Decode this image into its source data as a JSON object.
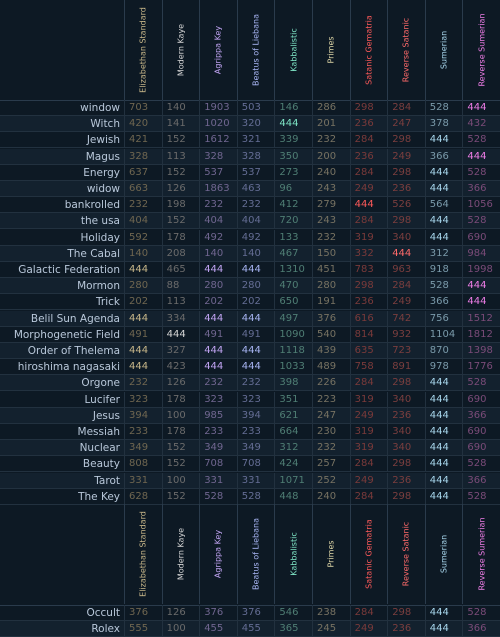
{
  "columns": [
    {
      "name": "Elizabethan Standard",
      "color": "#c9b88a",
      "dim": "#6f6650"
    },
    {
      "name": "Modern Kaye",
      "color": "#d6d6d6",
      "dim": "#6b6b6b"
    },
    {
      "name": "Agrippa Key",
      "color": "#c1a4f3",
      "dim": "#706690"
    },
    {
      "name": "Beatus of Liebana",
      "color": "#a9b6f5",
      "dim": "#646d94"
    },
    {
      "name": "Kabbalistic",
      "color": "#7fe6c6",
      "dim": "#4f7e74"
    },
    {
      "name": "Primes",
      "color": "#dad2a4",
      "dim": "#777262"
    },
    {
      "name": "Satanic Gematria",
      "color": "#ff5a5a",
      "dim": "#7a3a3a"
    },
    {
      "name": "Reverse Satanic",
      "color": "#ff6a6a",
      "dim": "#7a3e3e"
    },
    {
      "name": "Sumerian",
      "color": "#a9d8ee",
      "dim": "#7a9aaa"
    },
    {
      "name": "Reverse Sumerian",
      "color": "#f07ee8",
      "dim": "#7a4b78"
    }
  ],
  "rows": [
    {
      "word": "window",
      "values": [
        "703",
        "140",
        "1903",
        "503",
        "146",
        "286",
        "298",
        "284",
        "528",
        "444"
      ]
    },
    {
      "word": "Witch",
      "values": [
        "420",
        "141",
        "1020",
        "320",
        "444",
        "201",
        "236",
        "247",
        "378",
        "432"
      ]
    },
    {
      "word": "Jewish",
      "values": [
        "421",
        "152",
        "1612",
        "321",
        "339",
        "232",
        "284",
        "298",
        "444",
        "528"
      ]
    },
    {
      "word": "Magus",
      "values": [
        "328",
        "113",
        "328",
        "328",
        "350",
        "200",
        "236",
        "249",
        "366",
        "444"
      ]
    },
    {
      "word": "Energy",
      "values": [
        "637",
        "152",
        "537",
        "537",
        "273",
        "240",
        "284",
        "298",
        "444",
        "528"
      ]
    },
    {
      "word": "widow",
      "values": [
        "663",
        "126",
        "1863",
        "463",
        "96",
        "243",
        "249",
        "236",
        "444",
        "366"
      ]
    },
    {
      "word": "bankrolled",
      "values": [
        "232",
        "198",
        "232",
        "232",
        "412",
        "279",
        "444",
        "526",
        "564",
        "1056"
      ]
    },
    {
      "word": "the usa",
      "values": [
        "404",
        "152",
        "404",
        "404",
        "720",
        "243",
        "284",
        "298",
        "444",
        "528"
      ]
    },
    {
      "word": "Holiday",
      "values": [
        "592",
        "178",
        "492",
        "492",
        "133",
        "232",
        "319",
        "340",
        "444",
        "690"
      ]
    },
    {
      "word": "The Cabal",
      "values": [
        "140",
        "208",
        "140",
        "140",
        "467",
        "150",
        "332",
        "444",
        "312",
        "984"
      ]
    },
    {
      "word": "Galactic Federation",
      "values": [
        "444",
        "465",
        "444",
        "444",
        "1310",
        "451",
        "783",
        "963",
        "918",
        "1998"
      ]
    },
    {
      "word": "Mormon",
      "values": [
        "280",
        "88",
        "280",
        "280",
        "470",
        "280",
        "298",
        "284",
        "528",
        "444"
      ]
    },
    {
      "word": "Trick",
      "values": [
        "202",
        "113",
        "202",
        "202",
        "650",
        "191",
        "236",
        "249",
        "366",
        "444"
      ]
    },
    {
      "word": "Belil Sun Agenda",
      "values": [
        "444",
        "334",
        "444",
        "444",
        "497",
        "376",
        "616",
        "742",
        "756",
        "1512"
      ]
    },
    {
      "word": "Morphogenetic Field",
      "values": [
        "491",
        "444",
        "491",
        "491",
        "1090",
        "540",
        "814",
        "932",
        "1104",
        "1812"
      ]
    },
    {
      "word": "Order of Thelema",
      "values": [
        "444",
        "327",
        "444",
        "444",
        "1118",
        "439",
        "635",
        "723",
        "870",
        "1398"
      ]
    },
    {
      "word": "hiroshima nagasaki",
      "values": [
        "444",
        "423",
        "444",
        "444",
        "1033",
        "489",
        "758",
        "891",
        "978",
        "1776"
      ]
    },
    {
      "word": "Orgone",
      "values": [
        "232",
        "126",
        "232",
        "232",
        "398",
        "226",
        "284",
        "298",
        "444",
        "528"
      ]
    },
    {
      "word": "Lucifer",
      "values": [
        "323",
        "178",
        "323",
        "323",
        "351",
        "223",
        "319",
        "340",
        "444",
        "690"
      ]
    },
    {
      "word": "Jesus",
      "values": [
        "394",
        "100",
        "985",
        "394",
        "621",
        "247",
        "249",
        "236",
        "444",
        "366"
      ]
    },
    {
      "word": "Messiah",
      "values": [
        "233",
        "178",
        "233",
        "233",
        "664",
        "230",
        "319",
        "340",
        "444",
        "690"
      ]
    },
    {
      "word": "Nuclear",
      "values": [
        "349",
        "152",
        "349",
        "349",
        "312",
        "232",
        "319",
        "340",
        "444",
        "690"
      ]
    },
    {
      "word": "Beauty",
      "values": [
        "808",
        "152",
        "708",
        "708",
        "424",
        "257",
        "284",
        "298",
        "444",
        "528"
      ]
    },
    {
      "word": "Tarot",
      "values": [
        "331",
        "100",
        "331",
        "331",
        "1071",
        "252",
        "249",
        "236",
        "444",
        "366"
      ]
    },
    {
      "word": "The Key",
      "values": [
        "628",
        "152",
        "528",
        "528",
        "448",
        "240",
        "284",
        "298",
        "444",
        "528"
      ]
    }
  ],
  "rows2": [
    {
      "word": "Occult",
      "values": [
        "376",
        "126",
        "376",
        "376",
        "546",
        "238",
        "284",
        "298",
        "444",
        "528"
      ]
    },
    {
      "word": "Rolex",
      "values": [
        "555",
        "100",
        "455",
        "455",
        "365",
        "245",
        "249",
        "236",
        "444",
        "366"
      ]
    }
  ]
}
